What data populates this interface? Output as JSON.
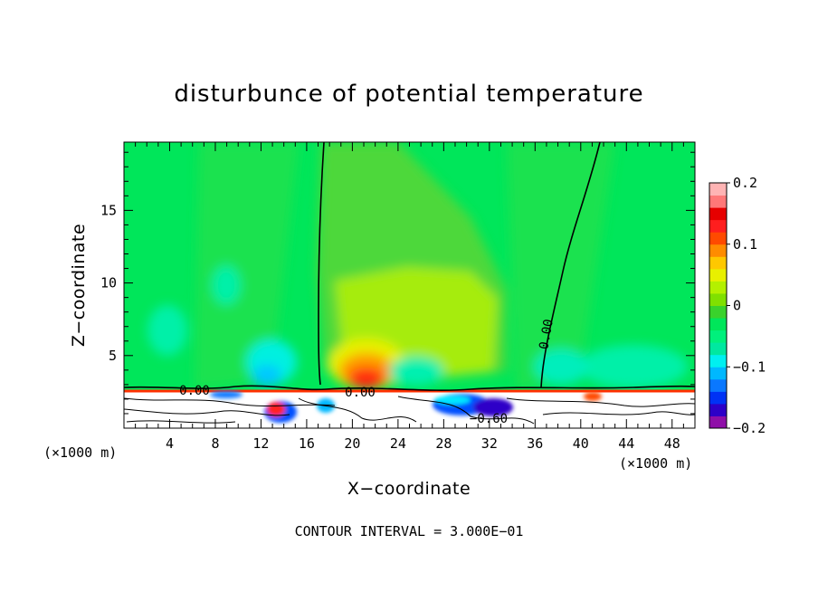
{
  "chart_data": {
    "type": "heatmap",
    "title": "disturbunce of potential temperature",
    "xlabel": "X−coordinate",
    "ylabel": "Z−coordinate",
    "x_unit_label": "(×1000 m)",
    "x_unit_label_right": "(×1000 m)",
    "footnote": "CONTOUR INTERVAL = 3.000E−01",
    "xlim": [
      0,
      50
    ],
    "ylim": [
      0,
      19.7
    ],
    "x_ticks": [
      4,
      8,
      12,
      16,
      20,
      24,
      28,
      32,
      36,
      40,
      44,
      48
    ],
    "y_ticks": [
      5,
      10,
      15
    ],
    "colorbar": {
      "range": [
        -0.2,
        0.2
      ],
      "tick_values": [
        0.2,
        0.1,
        0,
        -0.1,
        -0.2
      ],
      "tick_labels": [
        "0.2",
        "0.1",
        "0",
        "−0.1",
        "−0.2"
      ],
      "colors": [
        "#8f0fa8",
        "#2d00c8",
        "#0032f5",
        "#0a78ff",
        "#00b8ff",
        "#00f0f0",
        "#00e8a0",
        "#00f07c",
        "#00e65a",
        "#3ad22c",
        "#80e000",
        "#b4f000",
        "#e8f000",
        "#ffc800",
        "#ff8c00",
        "#ff4a00",
        "#ff1e1e",
        "#e60000",
        "#ff7878",
        "#ffb4b4"
      ]
    },
    "contour_labels": [
      "0.00",
      "0.00",
      "−0.60",
      "0.00"
    ],
    "features": [
      {
        "x": 21,
        "z": 3.5,
        "value": 0.18,
        "desc": "warm anomaly above terrain"
      },
      {
        "x": 30,
        "z": 1.5,
        "value": -0.2,
        "desc": "cold anomaly near surface"
      },
      {
        "x": 27,
        "z": 11,
        "value": 0.04,
        "desc": "broad positive region"
      },
      {
        "x": 14,
        "z": 4,
        "value": -0.08,
        "desc": "cool pocket"
      }
    ],
    "grid": false
  }
}
